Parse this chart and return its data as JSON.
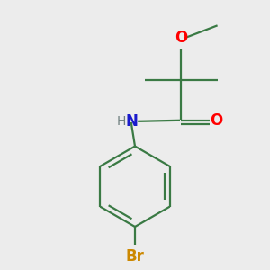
{
  "bg_color": "#ececec",
  "bond_color": "#3a7a44",
  "bond_width": 1.6,
  "atom_colors": {
    "O": "#ff0000",
    "N": "#1a1acc",
    "Br": "#cc8800",
    "H": "#708080",
    "C": "#000000"
  },
  "font_size_atom": 11,
  "figsize": [
    3.0,
    3.0
  ],
  "dpi": 100,
  "xlim": [
    -1.2,
    1.2
  ],
  "ylim": [
    -1.5,
    1.2
  ]
}
